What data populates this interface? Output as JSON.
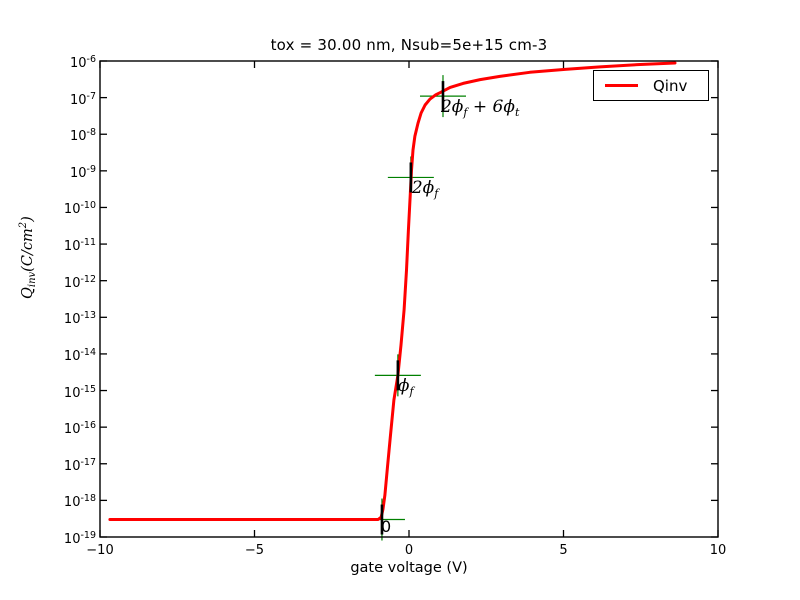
{
  "figure": {
    "title": "tox = 30.00 nm, Nsub=5e+15 cm-3",
    "xlabel": "gate voltage (V)",
    "ylabel_math": "Q_{inv}(C/cm^{2})",
    "legend": {
      "position": "upper right",
      "entries": [
        {
          "label": "Qinv",
          "color": "#ff0000"
        }
      ]
    },
    "colors": {
      "curve": "#ff0000",
      "marker_cross": "#008000",
      "marker_tick": "#000000",
      "axis": "#000000",
      "background": "#ffffff",
      "text": "#000000"
    }
  },
  "chart_data": {
    "type": "line",
    "title": "tox = 30.00 nm, Nsub=5e+15 cm-3",
    "xlabel": "gate voltage (V)",
    "ylabel": "Qinv (C/cm^2)",
    "x_axis": {
      "min": -10,
      "max": 10,
      "ticks": [
        -10,
        -5,
        0,
        5,
        10
      ],
      "grid": false
    },
    "y_axis": {
      "scale": "log",
      "min_exp": -19,
      "max_exp": -6,
      "grid": false,
      "tick_exponents": [
        -6,
        -7,
        -8,
        -9,
        -10,
        -11,
        -12,
        -13,
        -14,
        -15,
        -16,
        -17,
        -18,
        -19
      ]
    },
    "legend_position": "upper right",
    "series": [
      {
        "name": "Qinv",
        "color": "#ff0000",
        "points": [
          [
            -9.68,
            3e-19
          ],
          [
            -5.0,
            3e-19
          ],
          [
            -1.0,
            3e-19
          ],
          [
            -0.9,
            3.5e-19
          ],
          [
            -0.84,
            5.8e-19
          ],
          [
            -0.78,
            1.4e-18
          ],
          [
            -0.7,
            7.7e-18
          ],
          [
            -0.61,
            5e-17
          ],
          [
            -0.49,
            5.5e-16
          ],
          [
            -0.36,
            2.6e-15
          ],
          [
            -0.26,
            1.75e-14
          ],
          [
            -0.16,
            1.6e-13
          ],
          [
            -0.08,
            1.95e-12
          ],
          [
            -0.02,
            2.4e-11
          ],
          [
            0.05,
            3e-10
          ],
          [
            0.08,
            1.05e-09
          ],
          [
            0.13,
            3.7e-09
          ],
          [
            0.19,
            8.9e-09
          ],
          [
            0.29,
            2e-08
          ],
          [
            0.39,
            3.8e-08
          ],
          [
            0.52,
            6.3e-08
          ],
          [
            0.68,
            9.1e-08
          ],
          [
            0.87,
            1.2e-07
          ],
          [
            1.03,
            1.4e-07
          ],
          [
            1.33,
            1.9e-07
          ],
          [
            1.75,
            2.45e-07
          ],
          [
            2.3,
            3.1e-07
          ],
          [
            2.94,
            3.8e-07
          ],
          [
            3.91,
            4.9e-07
          ],
          [
            5.05,
            5.9e-07
          ],
          [
            6.18,
            6.9e-07
          ],
          [
            7.48,
            8e-07
          ],
          [
            8.61,
            8.8e-07
          ]
        ]
      }
    ],
    "annotations": [
      {
        "label": "0",
        "math": false,
        "v": -0.875,
        "q": 3e-19,
        "dx": -1,
        "dy": -2
      },
      {
        "label": "ϕ_f",
        "math": true,
        "v": -0.36,
        "q": 2.6e-15,
        "dx": 0,
        "dy": 3
      },
      {
        "label": "2ϕ_f",
        "math": true,
        "v": 0.06,
        "q": 6.6e-10,
        "dx": 1,
        "dy": 3
      },
      {
        "label": "2ϕ_f + 6ϕ_t",
        "math": true,
        "v": 1.1,
        "q": 1.1e-07,
        "dx": -2,
        "dy": 3
      }
    ]
  }
}
